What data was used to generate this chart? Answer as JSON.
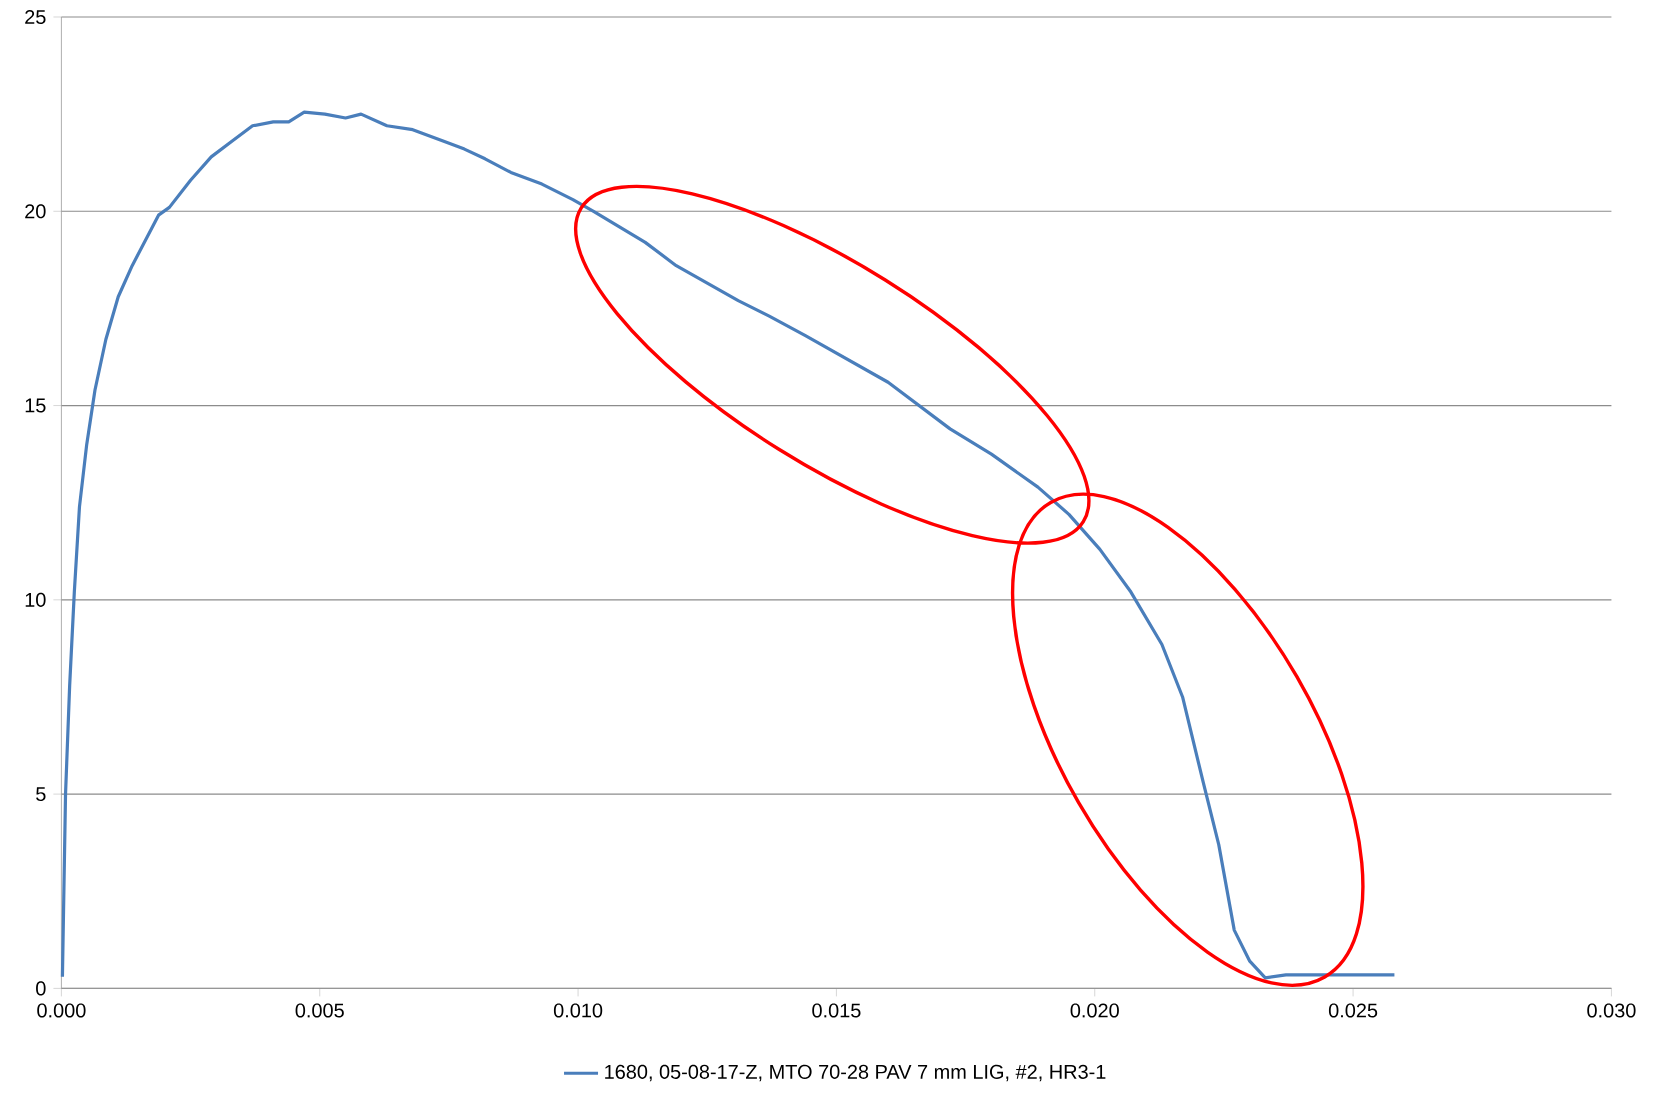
{
  "chart_data": {
    "type": "line",
    "legend": "bottom",
    "grid": "y",
    "xlim": [
      0,
      0.03
    ],
    "ylim": [
      0,
      25
    ],
    "xticks": [
      {
        "value": 0,
        "label": "0.000"
      },
      {
        "value": 0.005,
        "label": "0.005"
      },
      {
        "value": 0.01,
        "label": "0.010"
      },
      {
        "value": 0.015,
        "label": "0.015"
      },
      {
        "value": 0.02,
        "label": "0.020"
      },
      {
        "value": 0.025,
        "label": "0.025"
      },
      {
        "value": 0.03,
        "label": "0.030"
      }
    ],
    "yticks": [
      0,
      5,
      10,
      15,
      20,
      25
    ],
    "x": [
      2e-05,
      8e-05,
      0.00016,
      0.00025,
      0.00035,
      0.00049,
      0.00065,
      0.00086,
      0.0011,
      0.00137,
      0.00188,
      0.00209,
      0.0025,
      0.0029,
      0.0033,
      0.0037,
      0.0041,
      0.0044,
      0.0047,
      0.0051,
      0.0055,
      0.0058,
      0.0063,
      0.0068,
      0.0074,
      0.0078,
      0.0082,
      0.0087,
      0.0093,
      0.0099,
      0.0103,
      0.0108,
      0.0113,
      0.0119,
      0.0125,
      0.0131,
      0.0137,
      0.0144,
      0.0152,
      0.016,
      0.0166,
      0.0172,
      0.018,
      0.0189,
      0.0195,
      0.0201,
      0.0207,
      0.0213,
      0.0217,
      0.0221,
      0.0224,
      0.0227,
      0.023,
      0.0233,
      0.0237,
      0.0246,
      0.0258
    ],
    "series": [
      {
        "name": "1680, 05-08-17-Z, MTO 70-28 PAV 7 mm LIG, #2, HR3-1",
        "color": "#4a7ebb",
        "values": [
          0.3,
          5.0,
          7.8,
          10.2,
          12.4,
          14.0,
          15.4,
          16.7,
          17.8,
          18.6,
          19.9,
          20.1,
          20.8,
          21.4,
          21.8,
          22.2,
          22.3,
          22.3,
          22.55,
          22.5,
          22.4,
          22.5,
          22.2,
          22.1,
          21.8,
          21.6,
          21.35,
          21.0,
          20.7,
          20.3,
          20.0,
          19.6,
          19.2,
          18.6,
          18.15,
          17.7,
          17.3,
          16.8,
          16.2,
          15.6,
          15.0,
          14.4,
          13.75,
          12.9,
          12.2,
          11.3,
          10.2,
          8.85,
          7.5,
          5.3,
          3.7,
          1.5,
          0.7,
          0.27,
          0.35,
          0.35,
          0.35
        ]
      }
    ]
  }
}
